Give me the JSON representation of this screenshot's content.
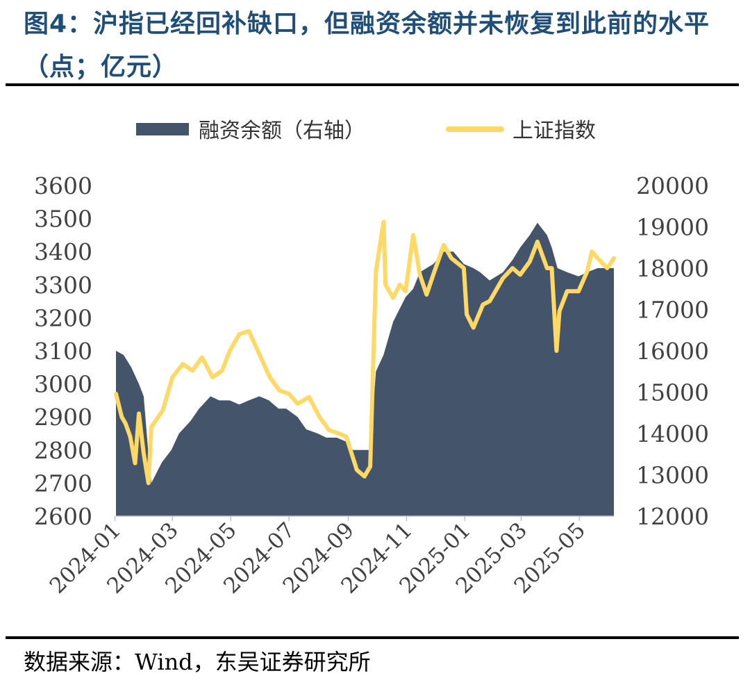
{
  "title": "图4：沪指已经回补缺口，但融资余额并未恢复到此前的水平（点；亿元）",
  "source": "数据来源：Wind，东吴证券研究所",
  "chart_data": {
    "type": "area+line",
    "x_range": [
      "2024-01-02",
      "2025-06-06"
    ],
    "x_ticks": [
      "2024-01",
      "2024-03",
      "2024-05",
      "2024-07",
      "2024-09",
      "2024-11",
      "2025-01",
      "2025-03",
      "2025-05"
    ],
    "y_left": {
      "min": 2600,
      "max": 3600,
      "ticks": [
        2600,
        2700,
        2800,
        2900,
        3000,
        3100,
        3200,
        3300,
        3400,
        3500,
        3600
      ]
    },
    "y_right": {
      "min": 12000,
      "max": 20000,
      "ticks": [
        12000,
        13000,
        14000,
        15000,
        16000,
        17000,
        18000,
        19000,
        20000
      ]
    },
    "legend_position": "top",
    "series": [
      {
        "name": "融资余额（右轴）",
        "type": "area",
        "axis": "right",
        "color": "#44546a",
        "points": [
          [
            "2024-01-02",
            16000
          ],
          [
            "2024-01-10",
            15900
          ],
          [
            "2024-01-18",
            15600
          ],
          [
            "2024-01-26",
            15200
          ],
          [
            "2024-01-31",
            14900
          ],
          [
            "2024-02-05",
            13500
          ],
          [
            "2024-02-08",
            12800
          ],
          [
            "2024-02-19",
            13300
          ],
          [
            "2024-02-29",
            13600
          ],
          [
            "2024-03-08",
            14000
          ],
          [
            "2024-03-20",
            14300
          ],
          [
            "2024-03-29",
            14600
          ],
          [
            "2024-04-10",
            14900
          ],
          [
            "2024-04-19",
            14800
          ],
          [
            "2024-04-30",
            14800
          ],
          [
            "2024-05-10",
            14700
          ],
          [
            "2024-05-20",
            14800
          ],
          [
            "2024-05-31",
            14900
          ],
          [
            "2024-06-10",
            14800
          ],
          [
            "2024-06-20",
            14600
          ],
          [
            "2024-06-28",
            14600
          ],
          [
            "2024-07-10",
            14400
          ],
          [
            "2024-07-19",
            14100
          ],
          [
            "2024-07-31",
            14000
          ],
          [
            "2024-08-09",
            13900
          ],
          [
            "2024-08-20",
            13900
          ],
          [
            "2024-08-30",
            13800
          ],
          [
            "2024-09-06",
            13600
          ],
          [
            "2024-09-13",
            13600
          ],
          [
            "2024-09-20",
            13600
          ],
          [
            "2024-09-24",
            13600
          ],
          [
            "2024-09-30",
            15500
          ],
          [
            "2024-10-08",
            15900
          ],
          [
            "2024-10-18",
            16700
          ],
          [
            "2024-10-31",
            17300
          ],
          [
            "2024-11-08",
            17500
          ],
          [
            "2024-11-15",
            17900
          ],
          [
            "2024-11-29",
            18100
          ],
          [
            "2024-12-10",
            18400
          ],
          [
            "2024-12-20",
            18400
          ],
          [
            "2024-12-31",
            18100
          ],
          [
            "2025-01-10",
            18000
          ],
          [
            "2025-01-17",
            17900
          ],
          [
            "2025-01-27",
            17700
          ],
          [
            "2025-02-10",
            17900
          ],
          [
            "2025-02-20",
            18200
          ],
          [
            "2025-02-28",
            18500
          ],
          [
            "2025-03-10",
            18800
          ],
          [
            "2025-03-18",
            19100
          ],
          [
            "2025-03-28",
            18800
          ],
          [
            "2025-04-02",
            18500
          ],
          [
            "2025-04-08",
            18000
          ],
          [
            "2025-04-18",
            17900
          ],
          [
            "2025-04-30",
            17800
          ],
          [
            "2025-05-09",
            17900
          ],
          [
            "2025-05-20",
            18000
          ],
          [
            "2025-05-30",
            18000
          ],
          [
            "2025-06-06",
            18000
          ]
        ]
      },
      {
        "name": "上证指数",
        "type": "line",
        "axis": "left",
        "color": "#ffd966",
        "points": [
          [
            "2024-01-02",
            2970
          ],
          [
            "2024-01-08",
            2900
          ],
          [
            "2024-01-12",
            2880
          ],
          [
            "2024-01-17",
            2840
          ],
          [
            "2024-01-22",
            2760
          ],
          [
            "2024-01-26",
            2910
          ],
          [
            "2024-01-31",
            2790
          ],
          [
            "2024-02-05",
            2700
          ],
          [
            "2024-02-08",
            2870
          ],
          [
            "2024-02-20",
            2920
          ],
          [
            "2024-03-01",
            3020
          ],
          [
            "2024-03-12",
            3060
          ],
          [
            "2024-03-22",
            3040
          ],
          [
            "2024-04-01",
            3080
          ],
          [
            "2024-04-12",
            3020
          ],
          [
            "2024-04-22",
            3040
          ],
          [
            "2024-04-30",
            3100
          ],
          [
            "2024-05-10",
            3150
          ],
          [
            "2024-05-20",
            3160
          ],
          [
            "2024-05-31",
            3090
          ],
          [
            "2024-06-11",
            3020
          ],
          [
            "2024-06-21",
            2980
          ],
          [
            "2024-07-01",
            2970
          ],
          [
            "2024-07-10",
            2940
          ],
          [
            "2024-07-22",
            2960
          ],
          [
            "2024-08-02",
            2900
          ],
          [
            "2024-08-12",
            2860
          ],
          [
            "2024-08-22",
            2850
          ],
          [
            "2024-08-30",
            2840
          ],
          [
            "2024-09-10",
            2740
          ],
          [
            "2024-09-18",
            2720
          ],
          [
            "2024-09-24",
            2750
          ],
          [
            "2024-09-30",
            3340
          ],
          [
            "2024-10-08",
            3490
          ],
          [
            "2024-10-10",
            3300
          ],
          [
            "2024-10-18",
            3260
          ],
          [
            "2024-10-25",
            3300
          ],
          [
            "2024-10-31",
            3280
          ],
          [
            "2024-11-08",
            3450
          ],
          [
            "2024-11-15",
            3330
          ],
          [
            "2024-11-22",
            3270
          ],
          [
            "2024-11-29",
            3330
          ],
          [
            "2024-12-10",
            3420
          ],
          [
            "2024-12-18",
            3380
          ],
          [
            "2024-12-31",
            3350
          ],
          [
            "2025-01-03",
            3210
          ],
          [
            "2025-01-10",
            3170
          ],
          [
            "2025-01-20",
            3240
          ],
          [
            "2025-01-27",
            3250
          ],
          [
            "2025-02-10",
            3320
          ],
          [
            "2025-02-20",
            3350
          ],
          [
            "2025-02-28",
            3330
          ],
          [
            "2025-03-10",
            3370
          ],
          [
            "2025-03-18",
            3430
          ],
          [
            "2025-03-28",
            3350
          ],
          [
            "2025-04-02",
            3350
          ],
          [
            "2025-04-07",
            3100
          ],
          [
            "2025-04-10",
            3220
          ],
          [
            "2025-04-18",
            3280
          ],
          [
            "2025-04-30",
            3280
          ],
          [
            "2025-05-09",
            3340
          ],
          [
            "2025-05-14",
            3400
          ],
          [
            "2025-05-20",
            3380
          ],
          [
            "2025-05-30",
            3350
          ],
          [
            "2025-06-06",
            3380
          ]
        ]
      }
    ]
  }
}
